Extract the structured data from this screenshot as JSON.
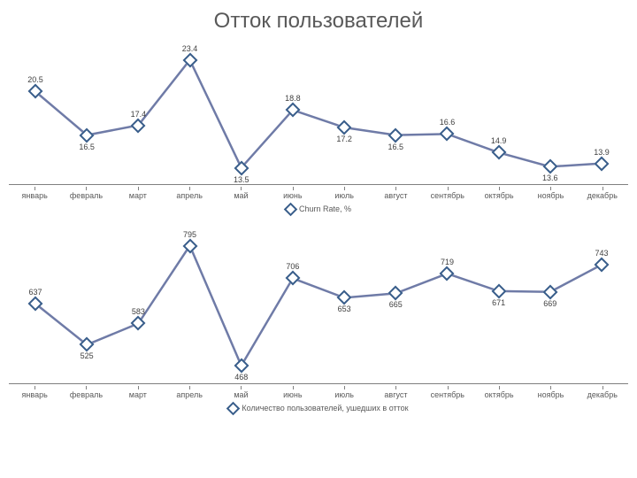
{
  "title": "Отток пользователей",
  "months": [
    "январь",
    "февраль",
    "март",
    "апрель",
    "май",
    "июнь",
    "июль",
    "август",
    "сентябрь",
    "октябрь",
    "ноябрь",
    "декабрь"
  ],
  "chart_top": {
    "type": "line",
    "values": [
      20.5,
      16.5,
      17.4,
      23.4,
      13.5,
      18.8,
      17.2,
      16.5,
      16.6,
      14.9,
      13.6,
      13.9
    ],
    "label_pos": [
      "above",
      "below",
      "above",
      "above",
      "below",
      "above",
      "below",
      "below",
      "above",
      "above",
      "below",
      "above"
    ],
    "ymin": 12.0,
    "ymax": 25.0,
    "line_color": "#6f7ba7",
    "marker_border": "#385d8a",
    "line_width": 2.5,
    "marker_size": 8,
    "data_label_fontsize": 9,
    "data_label_color": "#404040",
    "legend_label": "Churn Rate, %",
    "axis_line_color": "#808080",
    "tick_font": 9
  },
  "chart_bottom": {
    "type": "line",
    "values": [
      637,
      525,
      583,
      795,
      468,
      706,
      653,
      665,
      719,
      671,
      669,
      743
    ],
    "label_pos": [
      "above",
      "below",
      "above",
      "above",
      "below",
      "above",
      "below",
      "below",
      "above",
      "below",
      "below",
      "above"
    ],
    "ymin": 420,
    "ymax": 830,
    "line_color": "#6f7ba7",
    "marker_border": "#385d8a",
    "line_width": 2.5,
    "marker_size": 8,
    "data_label_fontsize": 9,
    "data_label_color": "#404040",
    "legend_label": "Количество пользователей, ушедших в отток",
    "axis_line_color": "#808080",
    "tick_font": 9
  },
  "background_color": "#ffffff",
  "title_fontsize": 24,
  "title_color": "#595959"
}
